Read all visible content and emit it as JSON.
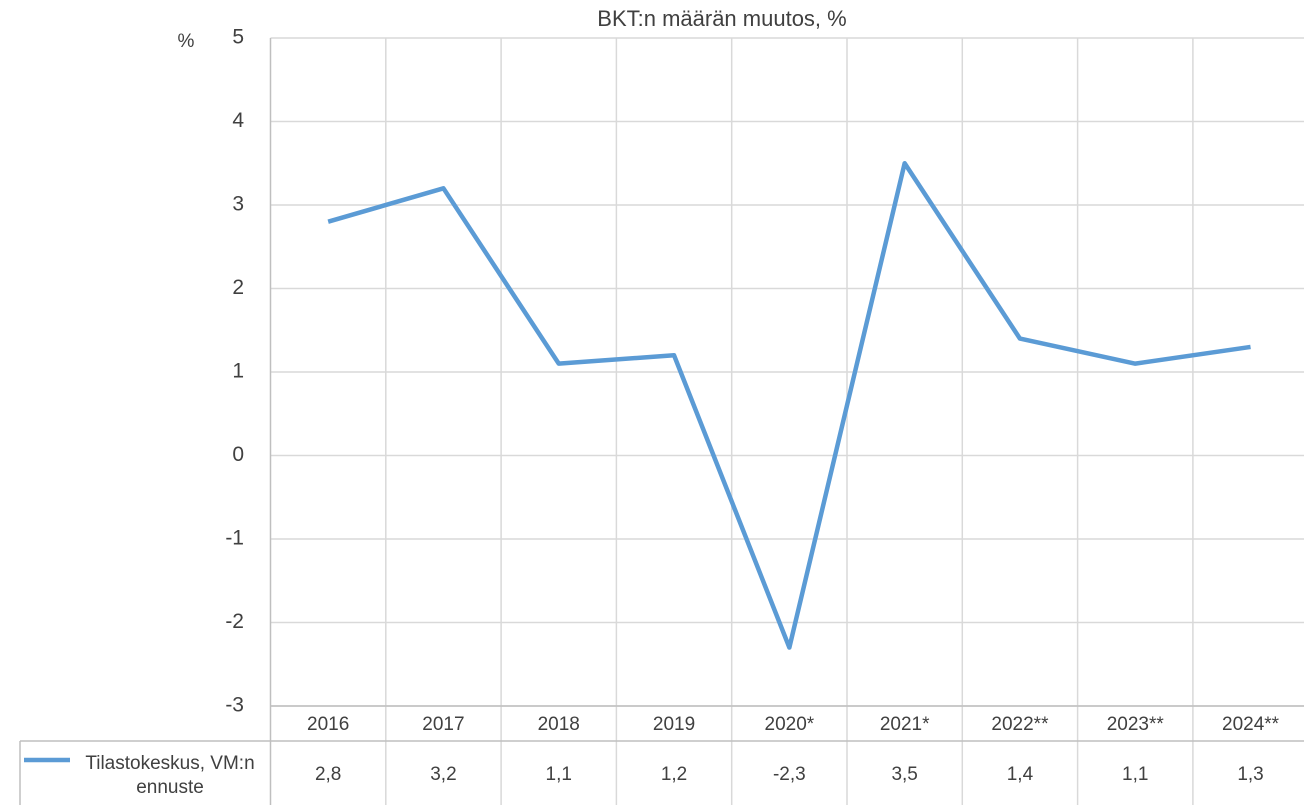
{
  "chart_data": {
    "type": "line",
    "title": "BKT:n määrän muutos, %",
    "y_label": "%",
    "categories": [
      "2016",
      "2017",
      "2018",
      "2019",
      "2020*",
      "2021*",
      "2022**",
      "2023**",
      "2024**"
    ],
    "series": [
      {
        "name": "Tilastokeskus, VM:n ennuste",
        "color": "#5b9bd5",
        "values": [
          2.8,
          3.2,
          1.1,
          1.2,
          -2.3,
          3.5,
          1.4,
          1.1,
          1.3
        ],
        "value_labels": [
          "2,8",
          "3,2",
          "1,1",
          "1,2",
          "-2,3",
          "3,5",
          "1,4",
          "1,1",
          "1,3"
        ]
      }
    ],
    "ylim": [
      -3,
      5
    ],
    "yticks": [
      -3,
      -2,
      -1,
      0,
      1,
      2,
      3,
      4,
      5
    ],
    "grid": true
  }
}
